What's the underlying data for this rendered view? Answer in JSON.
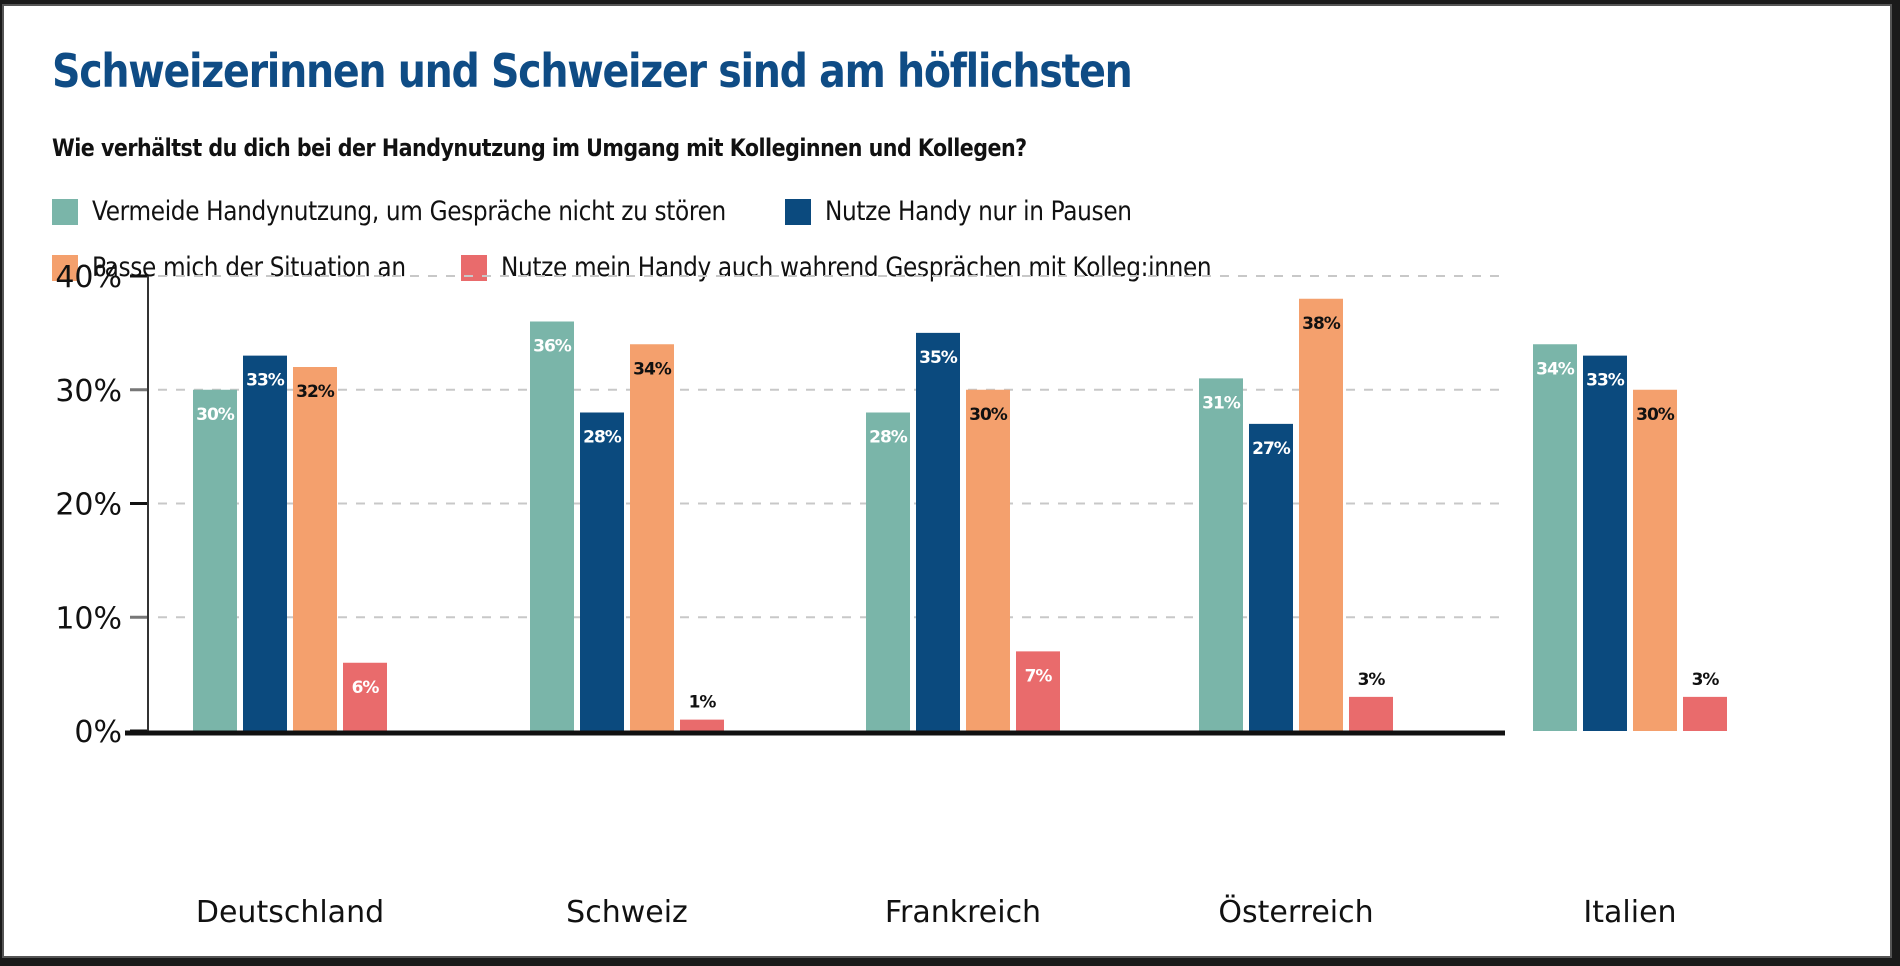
{
  "chart_data": {
    "type": "bar",
    "title": "Schweizerinnen und Schweizer sind am höflichsten",
    "subtitle": "Wie verhältst du dich bei der Handynutzung im Umgang mit Kolleginnen und Kollegen?",
    "xlabel": "",
    "ylabel": "",
    "categories": [
      "Deutschland",
      "Schweiz",
      "Frankreich",
      "Österreich",
      "Italien"
    ],
    "series": [
      {
        "name": "Vermeide Handynutzung, um Gespräche nicht zu stören",
        "color": "#7ab5a9",
        "label_color": "#ffffff",
        "values": [
          30,
          36,
          28,
          31,
          34
        ]
      },
      {
        "name": "Nutze Handy nur in Pausen",
        "color": "#0b4a7e",
        "label_color": "#ffffff",
        "values": [
          33,
          28,
          35,
          27,
          33
        ]
      },
      {
        "name": "Passe mich der Situation an",
        "color": "#f4a06d",
        "label_color": "#111111",
        "values": [
          32,
          34,
          30,
          38,
          30
        ]
      },
      {
        "name": "Nutze mein Handy auch wahrend Gesprächen mit Kolleg:innen",
        "color": "#e96b6c",
        "label_color": "#ffffff",
        "values": [
          6,
          1,
          7,
          3,
          3
        ]
      }
    ],
    "ylim": [
      0,
      40
    ],
    "yticks": [
      0,
      10,
      20,
      30,
      40
    ],
    "ytick_labels": [
      "0%",
      "10%",
      "20%",
      "30%",
      "40%"
    ],
    "value_suffix": "%",
    "grid": true,
    "legend_position": "top-left"
  }
}
